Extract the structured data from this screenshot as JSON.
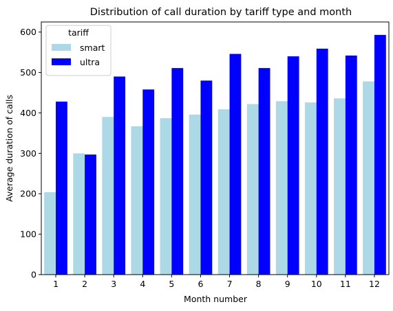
{
  "chart_data": {
    "type": "bar",
    "title": "Distribution of call duration by tariff type and month",
    "xlabel": "Month number",
    "ylabel": "Average duration of calls",
    "categories": [
      "1",
      "2",
      "3",
      "4",
      "5",
      "6",
      "7",
      "8",
      "9",
      "10",
      "11",
      "12"
    ],
    "series": [
      {
        "name": "smart",
        "color": "#add8e6",
        "values": [
          204,
          300,
          390,
          367,
          387,
          396,
          409,
          422,
          429,
          426,
          436,
          478
        ]
      },
      {
        "name": "ultra",
        "color": "#0000ff",
        "values": [
          428,
          297,
          490,
          458,
          511,
          480,
          546,
          511,
          540,
          559,
          542,
          593
        ]
      }
    ],
    "ylim": [
      0,
      625
    ],
    "yticks": [
      0,
      100,
      200,
      300,
      400,
      500,
      600
    ],
    "grid": false,
    "legend": {
      "title": "tariff",
      "position": "top-left"
    }
  }
}
